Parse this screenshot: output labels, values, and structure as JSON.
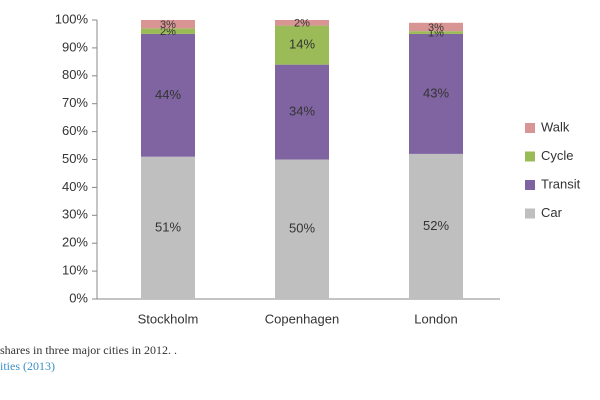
{
  "chart_data": {
    "type": "stacked_bar",
    "categories": [
      "Stockholm",
      "Copenhagen",
      "London"
    ],
    "series": [
      {
        "name": "Car",
        "color": "#c0bfc0",
        "values": [
          51,
          50,
          52
        ],
        "value_labels": [
          "51%",
          "50%",
          "52%"
        ]
      },
      {
        "name": "Transit",
        "color": "#8064a2",
        "values": [
          44,
          34,
          43
        ],
        "value_labels": [
          "44%",
          "34%",
          "43%"
        ]
      },
      {
        "name": "Cycle",
        "color": "#9bbb59",
        "values": [
          2,
          14,
          1
        ],
        "value_labels": [
          "2%",
          "14%",
          "1%"
        ]
      },
      {
        "name": "Walk",
        "color": "#d99594",
        "values": [
          3,
          2,
          3
        ],
        "value_labels": [
          "3%",
          "2%",
          "3%"
        ]
      }
    ],
    "ylim": [
      0,
      100
    ],
    "yticks": [
      {
        "value": 0,
        "label": "0%"
      },
      {
        "value": 10,
        "label": "10%"
      },
      {
        "value": 20,
        "label": "20%"
      },
      {
        "value": 30,
        "label": "30%"
      },
      {
        "value": 40,
        "label": "40%"
      },
      {
        "value": 50,
        "label": "50%"
      },
      {
        "value": 60,
        "label": "60%"
      },
      {
        "value": 70,
        "label": "70%"
      },
      {
        "value": 80,
        "label": "80%"
      },
      {
        "value": 90,
        "label": "90%"
      },
      {
        "value": 100,
        "label": "100%"
      }
    ],
    "legend": "right"
  },
  "caption": {
    "text": "shares in three major cities in 2012. .",
    "source": "ities (2013)"
  }
}
